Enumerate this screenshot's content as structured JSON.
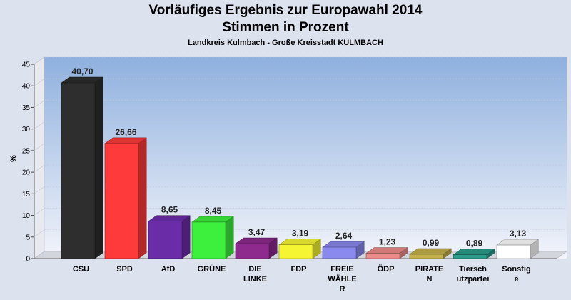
{
  "title": "Vorläufiges Ergebnis zur Europawahl 2014",
  "subtitle": "Stimmen in Prozent",
  "region": "Landkreis Kulmbach - Große Kreisstadt KULMBACH",
  "chart_data": {
    "type": "bar",
    "title": "Vorläufiges Ergebnis zur Europawahl 2014",
    "subtitle": "Stimmen in Prozent",
    "ylabel": "%",
    "xlabel": "",
    "ylim": [
      0,
      45
    ],
    "yticks": [
      0,
      5,
      10,
      15,
      20,
      25,
      30,
      35,
      40,
      45
    ],
    "categories": [
      [
        "CSU"
      ],
      [
        "SPD"
      ],
      [
        "AfD"
      ],
      [
        "GRÜNE"
      ],
      [
        "DIE",
        "LINKE"
      ],
      [
        "FDP"
      ],
      [
        "FREIE",
        "WÄHLE",
        "R"
      ],
      [
        "ÖDP"
      ],
      [
        "PIRATE",
        "N"
      ],
      [
        "Tiersch",
        "utzpartei"
      ],
      [
        "Sonstig",
        "e"
      ]
    ],
    "values": [
      40.7,
      26.66,
      8.65,
      8.45,
      3.47,
      3.19,
      2.64,
      1.23,
      0.99,
      0.89,
      3.13
    ],
    "value_labels": [
      "40,70",
      "26,66",
      "8,65",
      "8,45",
      "3,47",
      "3,19",
      "2,64",
      "1,23",
      "0,99",
      "0,89",
      "3,13"
    ],
    "colors": [
      "#2e2e2e",
      "#ff3a3a",
      "#6b2ca8",
      "#3df03d",
      "#8e2a8e",
      "#f5f533",
      "#8a8aee",
      "#ee8a8a",
      "#c4b04a",
      "#2a9a8a",
      "#ffffff"
    ],
    "grid": true
  }
}
